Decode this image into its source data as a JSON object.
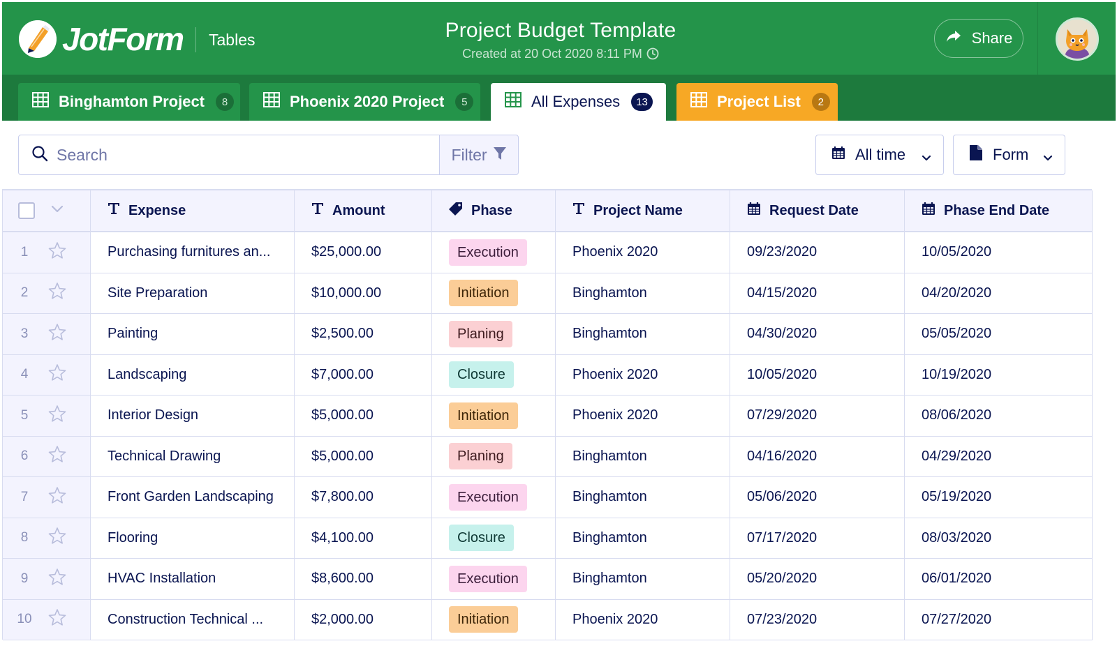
{
  "app": {
    "logo_text": "JotForm",
    "section_label": "Tables",
    "title": "Project Budget Template",
    "subtitle": "Created at 20 Oct 2020 8:11 PM",
    "share_label": "Share"
  },
  "tabs": [
    {
      "label": "Binghamton Project",
      "count": "8"
    },
    {
      "label": "Phoenix 2020 Project",
      "count": "5"
    },
    {
      "label": "All Expenses",
      "count": "13"
    },
    {
      "label": "Project List",
      "count": "2"
    }
  ],
  "toolbar": {
    "search_placeholder": "Search",
    "filter_label": "Filter",
    "time_label": "All time",
    "form_label": "Form"
  },
  "colors": {
    "header_green": "#24944a",
    "tab_strip_green": "#1d7a3d",
    "project_list_orange": "#f7a825",
    "navy": "#0a1551"
  },
  "columns": {
    "expense": "Expense",
    "amount": "Amount",
    "phase": "Phase",
    "project_name": "Project Name",
    "request_date": "Request Date",
    "phase_end_date": "Phase End Date"
  },
  "phase_colors": {
    "Execution": {
      "bg": "#fcd5ee",
      "fg": "#3b1d3a"
    },
    "Initiation": {
      "bg": "#fbcd97",
      "fg": "#3d2508"
    },
    "Planing": {
      "bg": "#fbd0d3",
      "fg": "#3e1b1f"
    },
    "Closure": {
      "bg": "#c6f1ec",
      "fg": "#0f3935"
    }
  },
  "rows": [
    {
      "num": "1",
      "expense": "Purchasing furnitures an...",
      "amount": "$25,000.00",
      "phase": "Execution",
      "project": "Phoenix 2020",
      "request": "09/23/2020",
      "end": "10/05/2020"
    },
    {
      "num": "2",
      "expense": "Site Preparation",
      "amount": "$10,000.00",
      "phase": "Initiation",
      "project": "Binghamton",
      "request": "04/15/2020",
      "end": "04/20/2020"
    },
    {
      "num": "3",
      "expense": "Painting",
      "amount": "$2,500.00",
      "phase": "Planing",
      "project": "Binghamton",
      "request": "04/30/2020",
      "end": "05/05/2020"
    },
    {
      "num": "4",
      "expense": "Landscaping",
      "amount": "$7,000.00",
      "phase": "Closure",
      "project": "Phoenix 2020",
      "request": "10/05/2020",
      "end": "10/19/2020"
    },
    {
      "num": "5",
      "expense": "Interior Design",
      "amount": "$5,000.00",
      "phase": "Initiation",
      "project": "Phoenix 2020",
      "request": "07/29/2020",
      "end": "08/06/2020"
    },
    {
      "num": "6",
      "expense": "Technical Drawing",
      "amount": "$5,000.00",
      "phase": "Planing",
      "project": "Binghamton",
      "request": "04/16/2020",
      "end": "04/29/2020"
    },
    {
      "num": "7",
      "expense": "Front Garden Landscaping",
      "amount": "$7,800.00",
      "phase": "Execution",
      "project": "Binghamton",
      "request": "05/06/2020",
      "end": "05/19/2020"
    },
    {
      "num": "8",
      "expense": "Flooring",
      "amount": "$4,100.00",
      "phase": "Closure",
      "project": "Binghamton",
      "request": "07/17/2020",
      "end": "08/03/2020"
    },
    {
      "num": "9",
      "expense": "HVAC Installation",
      "amount": "$8,600.00",
      "phase": "Execution",
      "project": "Binghamton",
      "request": "05/20/2020",
      "end": "06/01/2020"
    },
    {
      "num": "10",
      "expense": "Construction Technical ...",
      "amount": "$2,000.00",
      "phase": "Initiation",
      "project": "Phoenix 2020",
      "request": "07/23/2020",
      "end": "07/27/2020"
    }
  ]
}
